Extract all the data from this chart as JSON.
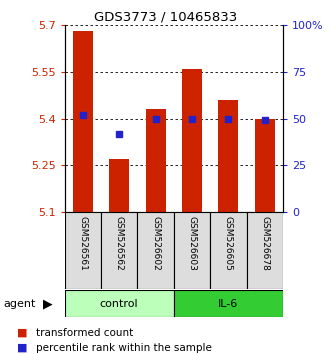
{
  "title": "GDS3773 / 10465833",
  "samples": [
    "GSM526561",
    "GSM526562",
    "GSM526602",
    "GSM526603",
    "GSM526605",
    "GSM526678"
  ],
  "transformed_counts": [
    5.68,
    5.27,
    5.43,
    5.56,
    5.46,
    5.4
  ],
  "percentile_ranks": [
    52,
    42,
    50,
    50,
    50,
    49
  ],
  "ylim_left": [
    5.1,
    5.7
  ],
  "ylim_right": [
    0,
    100
  ],
  "yticks_left": [
    5.1,
    5.25,
    5.4,
    5.55,
    5.7
  ],
  "ytick_labels_left": [
    "5.1",
    "5.25",
    "5.4",
    "5.55",
    "5.7"
  ],
  "yticks_right": [
    0,
    25,
    50,
    75,
    100
  ],
  "ytick_labels_right": [
    "0",
    "25",
    "50",
    "75",
    "100%"
  ],
  "bar_color": "#cc2200",
  "dot_color": "#2222cc",
  "control_color": "#bbffbb",
  "il6_color": "#33cc33",
  "label_color_left": "#cc2200",
  "label_color_right": "#2222cc",
  "bar_width": 0.55,
  "control_label": "control",
  "il6_label": "IL-6",
  "agent_label": "agent",
  "legend_bar": "transformed count",
  "legend_dot": "percentile rank within the sample"
}
